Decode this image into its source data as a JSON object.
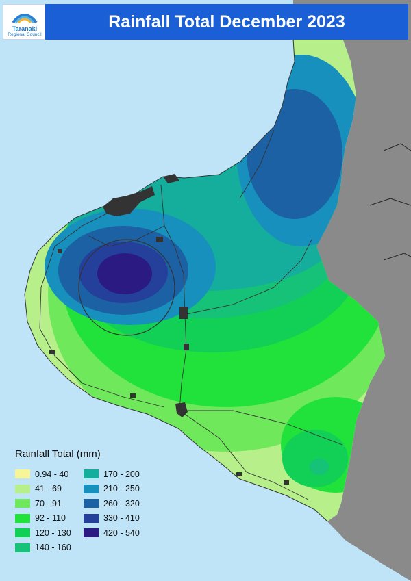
{
  "header": {
    "title": "Rainfall Total December 2023",
    "logo_line1": "Taranaki",
    "logo_line2": "Regional Council",
    "logo_colors": [
      "#2a7fd0",
      "#57b3e6",
      "#f1b52b"
    ]
  },
  "map": {
    "sea_color": "#bfe3f7",
    "outside_land_color": "#8a8a8a",
    "urban_color": "#333333"
  },
  "legend": {
    "title": "Rainfall Total (mm)",
    "items": [
      {
        "label": "0.94 - 40",
        "color": "#f6f59a"
      },
      {
        "label": "41 - 69",
        "color": "#b7f08a"
      },
      {
        "label": "70 - 91",
        "color": "#6fe85c"
      },
      {
        "label": "92 - 110",
        "color": "#21e23a"
      },
      {
        "label": "120 - 130",
        "color": "#12cf55"
      },
      {
        "label": "140 - 160",
        "color": "#16c278"
      },
      {
        "label": "170 - 200",
        "color": "#15ad9c"
      },
      {
        "label": "210 - 250",
        "color": "#1890bd"
      },
      {
        "label": "260 - 320",
        "color": "#1c61a3"
      },
      {
        "label": "330 - 410",
        "color": "#25409a"
      },
      {
        "label": "420 - 540",
        "color": "#2a1a82"
      }
    ]
  }
}
